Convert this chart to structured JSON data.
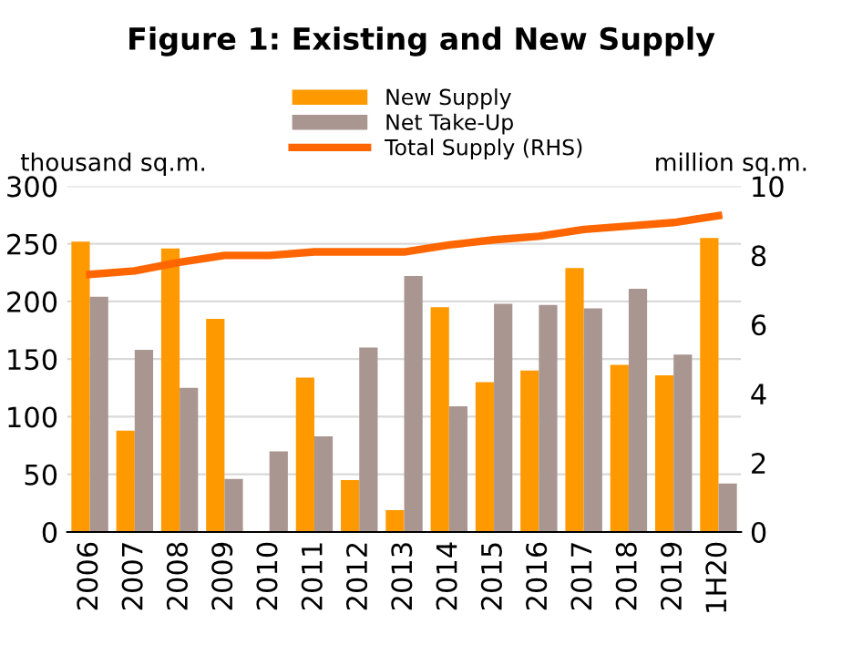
{
  "chart_data": {
    "type": "bar",
    "title": "Figure 1: Existing and New Supply",
    "ylabel": "thousand sq.m.",
    "y2label": "million sq.m.",
    "categories": [
      "2006",
      "2007",
      "2008",
      "2009",
      "2010",
      "2011",
      "2012",
      "2013",
      "2014",
      "2015",
      "2016",
      "2017",
      "2018",
      "2019",
      "1H20"
    ],
    "series": [
      {
        "name": "New Supply",
        "color": "#ff9900",
        "values": [
          252,
          88,
          246,
          185,
          0,
          134,
          45,
          19,
          195,
          130,
          140,
          229,
          145,
          136,
          255
        ]
      },
      {
        "name": "Net Take-Up",
        "color": "#a99690",
        "values": [
          204,
          158,
          125,
          46,
          70,
          83,
          160,
          222,
          109,
          198,
          197,
          194,
          211,
          154,
          42
        ]
      },
      {
        "name": "Total Supply (RHS)",
        "type": "line",
        "axis": "y2",
        "color": "#ff6600",
        "values": [
          7.45,
          7.55,
          7.8,
          8.0,
          8.0,
          8.1,
          8.1,
          8.1,
          8.3,
          8.45,
          8.55,
          8.75,
          8.85,
          8.95,
          9.15
        ]
      }
    ],
    "ylim": [
      0,
      300
    ],
    "yticks": [
      0,
      50,
      100,
      150,
      200,
      250,
      300
    ],
    "y2lim": [
      0,
      10
    ],
    "y2ticks": [
      0,
      2,
      4,
      6,
      8,
      10
    ],
    "grid": "y",
    "legend": "top",
    "marker": "none"
  }
}
